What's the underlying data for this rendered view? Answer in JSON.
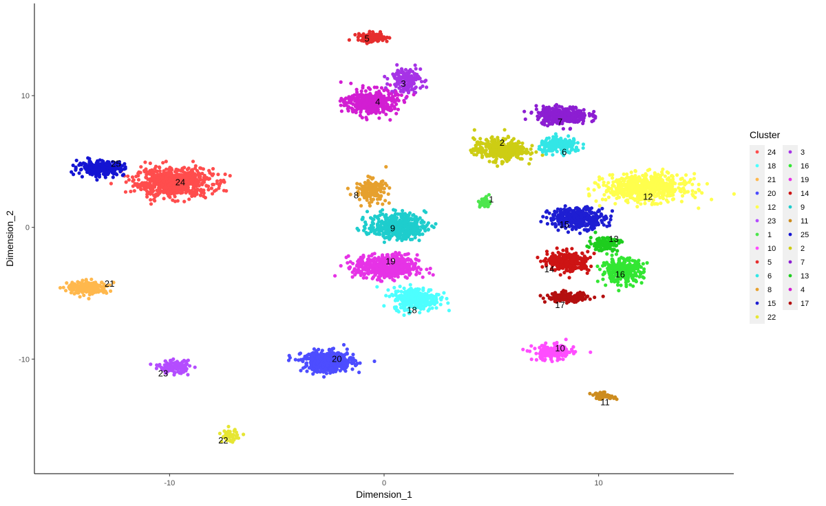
{
  "chart_data": {
    "type": "scatter",
    "xlabel": "Dimension_1",
    "ylabel": "Dimension_2",
    "xlim": [
      -16.3,
      16.3
    ],
    "ylim": [
      -18.7,
      17.0
    ],
    "x_ticks": [
      -10,
      0,
      10
    ],
    "y_ticks": [
      -10,
      0,
      10
    ],
    "x_tick_labels": [
      "-10",
      "0",
      "10"
    ],
    "y_tick_labels": [
      "-10",
      "0",
      "10"
    ],
    "grid": false,
    "legend": {
      "title": "Cluster",
      "placement": "right",
      "columns": [
        [
          "24",
          "18",
          "21",
          "20",
          "12",
          "23",
          "1",
          "10",
          "5",
          "6",
          "8",
          "15",
          "22"
        ],
        [
          "3",
          "16",
          "19",
          "14",
          "9",
          "11",
          "25",
          "2",
          "7",
          "13",
          "4",
          "17"
        ]
      ]
    },
    "clusters": [
      {
        "name": "24",
        "color": "#FF4D4D",
        "center": [
          -9.8,
          3.4
        ],
        "spread": [
          1.5,
          0.9
        ],
        "label_pos": [
          -9.5,
          3.4
        ],
        "count": 650
      },
      {
        "name": "25",
        "color": "#1414D2",
        "center": [
          -13.2,
          4.5
        ],
        "spread": [
          0.9,
          0.45
        ],
        "label_pos": [
          -12.5,
          4.8
        ],
        "count": 260
      },
      {
        "name": "21",
        "color": "#FFB84D",
        "center": [
          -13.8,
          -4.6
        ],
        "spread": [
          0.8,
          0.4
        ],
        "label_pos": [
          -12.8,
          -4.3
        ],
        "count": 190
      },
      {
        "name": "23",
        "color": "#B44DFF",
        "center": [
          -9.8,
          -10.6
        ],
        "spread": [
          0.6,
          0.4
        ],
        "label_pos": [
          -10.3,
          -11.1
        ],
        "count": 130
      },
      {
        "name": "22",
        "color": "#E6E633",
        "center": [
          -7.2,
          -15.8
        ],
        "spread": [
          0.3,
          0.4
        ],
        "label_pos": [
          -7.5,
          -16.2
        ],
        "count": 50
      },
      {
        "name": "20",
        "color": "#4D4DFF",
        "center": [
          -2.6,
          -10.2
        ],
        "spread": [
          1.0,
          0.65
        ],
        "label_pos": [
          -2.2,
          -10.0
        ],
        "count": 420
      },
      {
        "name": "5",
        "color": "#E62E2E",
        "center": [
          -0.5,
          14.4
        ],
        "spread": [
          0.6,
          0.3
        ],
        "label_pos": [
          -0.8,
          14.3
        ],
        "count": 110
      },
      {
        "name": "3",
        "color": "#A633E6",
        "center": [
          1.0,
          11.2
        ],
        "spread": [
          0.6,
          0.8
        ],
        "label_pos": [
          0.9,
          10.9
        ],
        "count": 150
      },
      {
        "name": "4",
        "color": "#D21ED2",
        "center": [
          -0.6,
          9.5
        ],
        "spread": [
          1.0,
          0.8
        ],
        "label_pos": [
          -0.3,
          9.5
        ],
        "count": 360
      },
      {
        "name": "8",
        "color": "#E6A02E",
        "center": [
          -0.6,
          2.8
        ],
        "spread": [
          0.6,
          0.7
        ],
        "label_pos": [
          -1.3,
          2.4
        ],
        "count": 160
      },
      {
        "name": "9",
        "color": "#1ECDCD",
        "center": [
          0.6,
          0.1
        ],
        "spread": [
          1.1,
          0.8
        ],
        "label_pos": [
          0.4,
          -0.1
        ],
        "count": 420
      },
      {
        "name": "19",
        "color": "#E633E6",
        "center": [
          0.1,
          -3.0
        ],
        "spread": [
          1.2,
          0.75
        ],
        "label_pos": [
          0.3,
          -2.6
        ],
        "count": 520
      },
      {
        "name": "18",
        "color": "#4DFFFF",
        "center": [
          1.5,
          -5.4
        ],
        "spread": [
          0.9,
          0.7
        ],
        "label_pos": [
          1.3,
          -6.3
        ],
        "count": 330
      },
      {
        "name": "1",
        "color": "#4DE64D",
        "center": [
          4.7,
          1.9
        ],
        "spread": [
          0.2,
          0.35
        ],
        "label_pos": [
          5.0,
          2.1
        ],
        "count": 55
      },
      {
        "name": "2",
        "color": "#CDCD14",
        "center": [
          5.4,
          5.9
        ],
        "spread": [
          1.0,
          0.7
        ],
        "label_pos": [
          5.5,
          6.4
        ],
        "count": 360
      },
      {
        "name": "7",
        "color": "#8C1ED2",
        "center": [
          8.3,
          8.5
        ],
        "spread": [
          1.0,
          0.55
        ],
        "label_pos": [
          8.2,
          8.0
        ],
        "count": 330
      },
      {
        "name": "6",
        "color": "#33E6E6",
        "center": [
          8.2,
          6.2
        ],
        "spread": [
          0.8,
          0.45
        ],
        "label_pos": [
          8.4,
          5.7
        ],
        "count": 220
      },
      {
        "name": "12",
        "color": "#FFFF4D",
        "center": [
          12.2,
          3.0
        ],
        "spread": [
          1.6,
          0.85
        ],
        "label_pos": [
          12.3,
          2.3
        ],
        "count": 600
      },
      {
        "name": "15",
        "color": "#1E1ED2",
        "center": [
          9.0,
          0.7
        ],
        "spread": [
          1.1,
          0.65
        ],
        "label_pos": [
          8.4,
          0.2
        ],
        "count": 370
      },
      {
        "name": "13",
        "color": "#1ECD1E",
        "center": [
          10.3,
          -1.2
        ],
        "spread": [
          0.6,
          0.45
        ],
        "label_pos": [
          10.7,
          -0.9
        ],
        "count": 120
      },
      {
        "name": "16",
        "color": "#33E633",
        "center": [
          11.1,
          -3.3
        ],
        "spread": [
          0.8,
          0.75
        ],
        "label_pos": [
          11.0,
          -3.6
        ],
        "count": 290
      },
      {
        "name": "14",
        "color": "#CD1414",
        "center": [
          8.6,
          -2.6
        ],
        "spread": [
          0.8,
          0.6
        ],
        "label_pos": [
          7.7,
          -3.2
        ],
        "count": 270
      },
      {
        "name": "17",
        "color": "#B40F0F",
        "center": [
          8.5,
          -5.3
        ],
        "spread": [
          0.8,
          0.3
        ],
        "label_pos": [
          8.2,
          -5.9
        ],
        "count": 150
      },
      {
        "name": "10",
        "color": "#FF4DFF",
        "center": [
          7.9,
          -9.5
        ],
        "spread": [
          0.8,
          0.5
        ],
        "label_pos": [
          8.2,
          -9.2
        ],
        "count": 170
      },
      {
        "name": "11",
        "color": "#CD8C1E",
        "center": [
          10.2,
          -12.8
        ],
        "spread": [
          0.45,
          0.2
        ],
        "label_pos": [
          10.3,
          -13.3
        ],
        "count": 60
      }
    ]
  }
}
